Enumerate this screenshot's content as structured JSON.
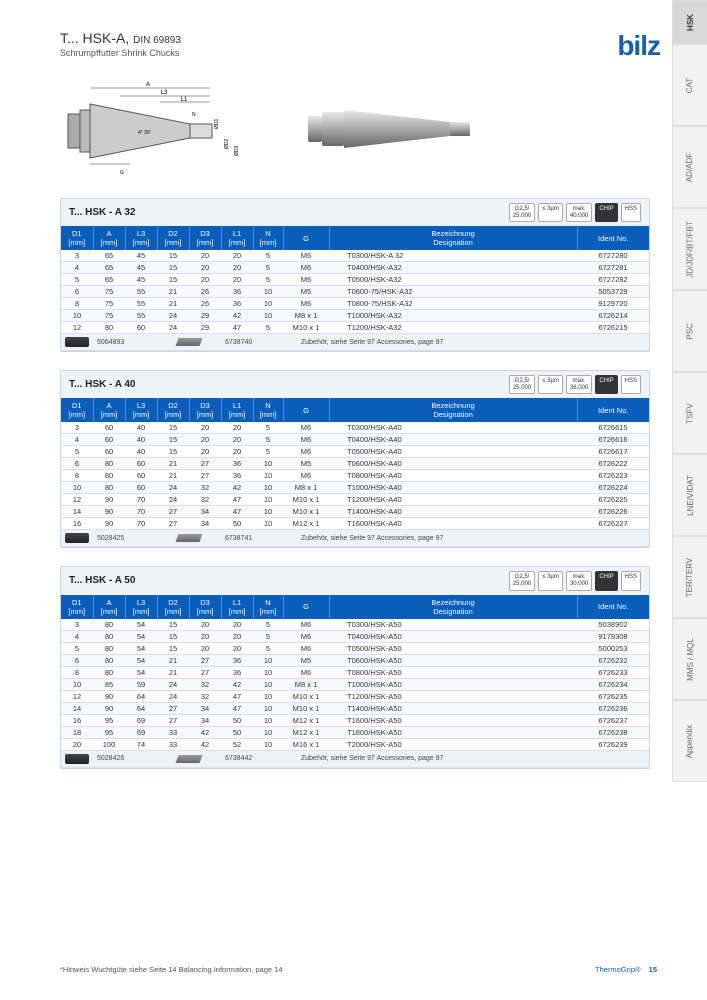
{
  "header": {
    "title_prefix": "T... HSK-A, ",
    "title_din": "DIN 69893",
    "subtitle": "Schrumpffutter  Shrink Chucks",
    "brand": "bilz"
  },
  "side_tabs": [
    "HSK",
    "CAT",
    "AD/ADF",
    "JD/JDF/BT/FBT",
    "PSC",
    "TSFV",
    "LNE/VIDAT",
    "TER/TERV",
    "MMS / MQL",
    "Appendix"
  ],
  "badges": {
    "g": "G2,5/\n25.000",
    "rpm_unit": "≤ 3µm",
    "chip": "CHIP",
    "hss": "HSS"
  },
  "columns": [
    "D1\n[mm]",
    "A\n[mm]",
    "L3\n[mm]",
    "D2\n[mm]",
    "D3\n[mm]",
    "L1\n[mm]",
    "N\n[mm]",
    "G",
    "Bezeichnung\nDesignation",
    "Ident No."
  ],
  "accessories_label": "Zubehör, siehe Seite 97  Accessories, page 97",
  "sections": [
    {
      "title": "T... HSK - A 32",
      "max_rpm": "max.\n40.000",
      "rows": [
        [
          "3",
          "65",
          "45",
          "15",
          "20",
          "20",
          "5",
          "M6",
          "T0300/HSK-A 32",
          "6727280"
        ],
        [
          "4",
          "65",
          "45",
          "15",
          "20",
          "20",
          "5",
          "M6",
          "T0400/HSK-A32",
          "6727281"
        ],
        [
          "5",
          "65",
          "45",
          "15",
          "20",
          "20",
          "5",
          "M6",
          "T0500/HSK-A32",
          "6727282"
        ],
        [
          "6",
          "75",
          "55",
          "21",
          "26",
          "36",
          "10",
          "M5",
          "T0600-75/HSK-A32",
          "5053729"
        ],
        [
          "8",
          "75",
          "55",
          "21",
          "26",
          "36",
          "10",
          "M6",
          "T0800-75/HSK-A32",
          "9129720"
        ],
        [
          "10",
          "75",
          "55",
          "24",
          "29",
          "42",
          "10",
          "M8 x 1",
          "T1000/HSK-A32",
          "6726214"
        ],
        [
          "12",
          "80",
          "60",
          "24",
          "29",
          "47",
          "5",
          "M10 x 1",
          "T1200/HSK-A32",
          "6726215"
        ]
      ],
      "acc_codes": [
        "5064893",
        "6738740"
      ]
    },
    {
      "title": "T... HSK - A 40",
      "max_rpm": "max.\n36.000",
      "rows": [
        [
          "3",
          "60",
          "40",
          "15",
          "20",
          "20",
          "5",
          "M6",
          "T0300/HSK-A40",
          "6726615"
        ],
        [
          "4",
          "60",
          "40",
          "15",
          "20",
          "20",
          "5",
          "M6",
          "T0400/HSK-A40",
          "6726616"
        ],
        [
          "5",
          "60",
          "40",
          "15",
          "20",
          "20",
          "5",
          "M6",
          "T0500/HSK-A40",
          "6726617"
        ],
        [
          "6",
          "80",
          "60",
          "21",
          "27",
          "36",
          "10",
          "M5",
          "T0600/HSK-A40",
          "6726222"
        ],
        [
          "8",
          "80",
          "60",
          "21",
          "27",
          "36",
          "10",
          "M6",
          "T0800/HSK-A40",
          "6726223"
        ],
        [
          "10",
          "80",
          "60",
          "24",
          "32",
          "42",
          "10",
          "M8 x 1",
          "T1000/HSK-A40",
          "6726224"
        ],
        [
          "12",
          "90",
          "70",
          "24",
          "32",
          "47",
          "10",
          "M10 x 1",
          "T1200/HSK-A40",
          "6726225"
        ],
        [
          "14",
          "90",
          "70",
          "27",
          "34",
          "47",
          "10",
          "M10 x 1",
          "T1400/HSK-A40",
          "6726226"
        ],
        [
          "16",
          "90",
          "70",
          "27",
          "34",
          "50",
          "10",
          "M12 x 1",
          "T1600/HSK-A40",
          "6726227"
        ]
      ],
      "acc_codes": [
        "5028425",
        "6738741"
      ]
    },
    {
      "title": "T... HSK - A 50",
      "max_rpm": "max.\n30.000",
      "rows": [
        [
          "3",
          "80",
          "54",
          "15",
          "20",
          "20",
          "5",
          "M6",
          "T0300/HSK-A50",
          "5038902"
        ],
        [
          "4",
          "80",
          "54",
          "15",
          "20",
          "20",
          "5",
          "M6",
          "T0400/HSK-A50",
          "9179308"
        ],
        [
          "5",
          "80",
          "54",
          "15",
          "20",
          "20",
          "5",
          "M6",
          "T0500/HSK-A50",
          "5000253"
        ],
        [
          "6",
          "80",
          "54",
          "21",
          "27",
          "36",
          "10",
          "M5",
          "T0600/HSK-A50",
          "6726232"
        ],
        [
          "8",
          "80",
          "54",
          "21",
          "27",
          "36",
          "10",
          "M6",
          "T0800/HSK-A50",
          "6726233"
        ],
        [
          "10",
          "85",
          "59",
          "24",
          "32",
          "42",
          "10",
          "M8 x 1",
          "T1000/HSK-A50",
          "6726234"
        ],
        [
          "12",
          "90",
          "64",
          "24",
          "32",
          "47",
          "10",
          "M10 x 1",
          "T1200/HSK-A50",
          "6726235"
        ],
        [
          "14",
          "90",
          "64",
          "27",
          "34",
          "47",
          "10",
          "M10 x 1",
          "T1400/HSK-A50",
          "6726236"
        ],
        [
          "16",
          "95",
          "69",
          "27",
          "34",
          "50",
          "10",
          "M12 x 1",
          "T1600/HSK-A50",
          "6726237"
        ],
        [
          "18",
          "95",
          "69",
          "33",
          "42",
          "50",
          "10",
          "M12 x 1",
          "T1800/HSK-A50",
          "6726238"
        ],
        [
          "20",
          "100",
          "74",
          "33",
          "42",
          "52",
          "10",
          "M16 x 1",
          "T2000/HSK-A50",
          "6726239"
        ]
      ],
      "acc_codes": [
        "5028426",
        "6738442"
      ]
    }
  ],
  "footer": {
    "hint": "*Hinweis Wuchtgüte siehe Seite 14  Balancing Information, page 14",
    "brand_line": "ThermoGrip®",
    "page_no": "15"
  },
  "colors": {
    "thead_bg": "#0a5db8",
    "brand": "#1a5fb4",
    "section_bg": "#eef3f9",
    "row_border": "#d8e0eb"
  }
}
